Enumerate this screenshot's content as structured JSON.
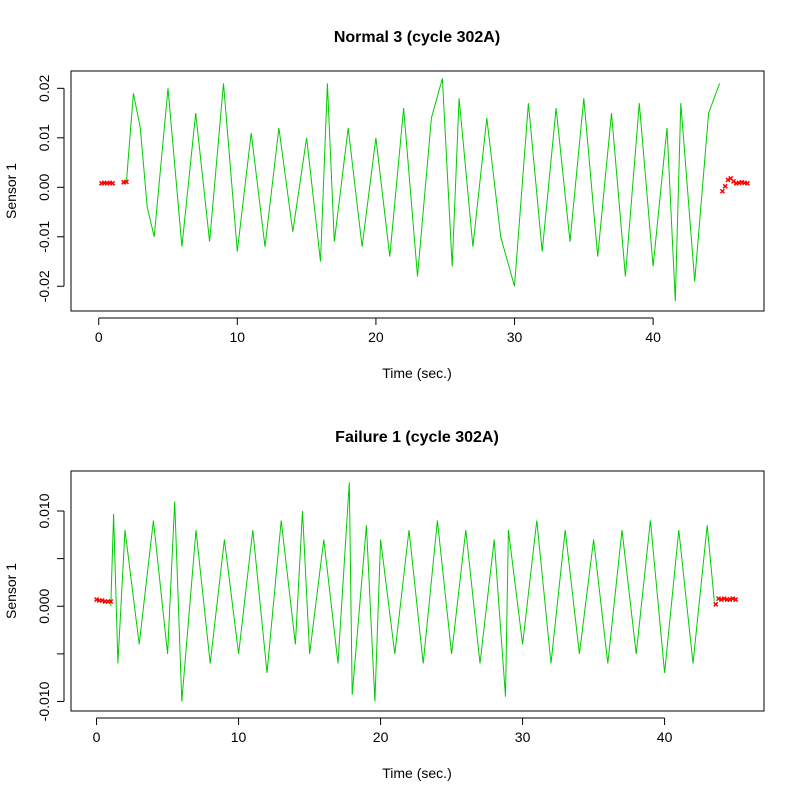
{
  "chart_data": [
    {
      "type": "line",
      "title": "Normal 3 (cycle 302A)",
      "xlabel": "Time (sec.)",
      "ylabel": "Sensor 1",
      "xlim": [
        -2,
        48
      ],
      "ylim": [
        -0.025,
        0.0235
      ],
      "x_ticks": [
        0,
        10,
        20,
        30,
        40
      ],
      "x_tick_labels": [
        "0",
        "10",
        "20",
        "30",
        "40"
      ],
      "y_ticks": [
        -0.02,
        -0.01,
        0.0,
        0.01,
        0.02
      ],
      "y_tick_labels": [
        "-0.02",
        "-0.01",
        "0.00",
        "0.01",
        "0.02"
      ],
      "grid": false,
      "series": [
        {
          "color": "#00cc00",
          "style": "line",
          "x": [
            2.0,
            2.5,
            3.0,
            3.5,
            4.0,
            5.0,
            6.0,
            7.0,
            8.0,
            9.0,
            10.0,
            11.0,
            12.0,
            13.0,
            14.0,
            15.0,
            16.0,
            16.5,
            17.0,
            18.0,
            19.0,
            20.0,
            21.0,
            22.0,
            23.0,
            24.0,
            24.8,
            25.5,
            26.0,
            27.0,
            28.0,
            29.0,
            30.0,
            31.0,
            32.0,
            33.0,
            34.0,
            35.0,
            36.0,
            37.0,
            38.0,
            39.0,
            40.0,
            41.0,
            41.6,
            42.0,
            43.0,
            44.0,
            44.8
          ],
          "y": [
            0.001,
            0.019,
            0.012,
            -0.004,
            -0.01,
            0.02,
            -0.012,
            0.015,
            -0.011,
            0.021,
            -0.013,
            0.011,
            -0.012,
            0.012,
            -0.009,
            0.01,
            -0.015,
            0.021,
            -0.011,
            0.012,
            -0.012,
            0.01,
            -0.014,
            0.016,
            -0.018,
            0.014,
            0.022,
            -0.016,
            0.018,
            -0.012,
            0.014,
            -0.01,
            -0.02,
            0.017,
            -0.013,
            0.016,
            -0.011,
            0.018,
            -0.014,
            0.015,
            -0.018,
            0.017,
            -0.016,
            0.012,
            -0.023,
            0.017,
            -0.019,
            0.015,
            0.021
          ]
        },
        {
          "color": "#ff0000",
          "style": "points",
          "x": [
            0.2,
            0.4,
            0.6,
            0.8,
            1.0,
            1.8,
            2.0,
            45.0,
            45.2,
            45.4,
            45.6,
            45.8,
            46.0,
            46.2,
            46.4,
            46.6,
            46.8
          ],
          "y": [
            0.0008,
            0.0009,
            0.0008,
            0.0009,
            0.0008,
            0.001,
            0.0011,
            -0.0008,
            0.0002,
            0.0015,
            0.0018,
            0.0012,
            0.0008,
            0.0009,
            0.001,
            0.0009,
            0.0008
          ]
        }
      ]
    },
    {
      "type": "line",
      "title": "Failure 1 (cycle 302A)",
      "xlabel": "Time (sec.)",
      "ylabel": "Sensor 1",
      "xlim": [
        -1.8,
        47.0
      ],
      "ylim": [
        -0.011,
        0.0142
      ],
      "x_ticks": [
        0,
        10,
        20,
        30,
        40
      ],
      "x_tick_labels": [
        "0",
        "10",
        "20",
        "30",
        "40"
      ],
      "y_ticks": [
        -0.01,
        -0.005,
        0.0,
        0.005,
        0.01
      ],
      "y_tick_labels": [
        "-0.010",
        "",
        "0.000",
        "",
        "0.010"
      ],
      "grid": false,
      "series": [
        {
          "color": "#00cc00",
          "style": "line",
          "x": [
            1.0,
            1.2,
            1.5,
            2.0,
            3.0,
            4.0,
            5.0,
            5.5,
            6.0,
            7.0,
            8.0,
            9.0,
            10.0,
            11.0,
            12.0,
            13.0,
            14.0,
            14.5,
            15.0,
            16.0,
            17.0,
            17.8,
            18.0,
            19.0,
            19.6,
            20.0,
            21.0,
            22.0,
            23.0,
            24.0,
            25.0,
            26.0,
            27.0,
            28.0,
            28.8,
            29.0,
            30.0,
            31.0,
            32.0,
            33.0,
            34.0,
            35.0,
            36.0,
            37.0,
            38.0,
            39.0,
            40.0,
            41.0,
            42.0,
            43.0,
            43.5
          ],
          "y": [
            0.0,
            0.0097,
            -0.006,
            0.008,
            -0.004,
            0.009,
            -0.005,
            0.011,
            -0.01,
            0.008,
            -0.006,
            0.007,
            -0.005,
            0.008,
            -0.007,
            0.009,
            -0.004,
            0.01,
            -0.005,
            0.007,
            -0.006,
            0.013,
            -0.0093,
            0.0085,
            -0.01,
            0.007,
            -0.005,
            0.008,
            -0.006,
            0.009,
            -0.005,
            0.008,
            -0.006,
            0.007,
            -0.0095,
            0.008,
            -0.004,
            0.009,
            -0.006,
            0.008,
            -0.005,
            0.007,
            -0.006,
            0.008,
            -0.005,
            0.009,
            -0.007,
            0.008,
            -0.006,
            0.0085,
            0.0005
          ]
        },
        {
          "color": "#ff0000",
          "style": "points",
          "x": [
            0.0,
            0.2,
            0.4,
            0.6,
            0.8,
            1.0,
            43.6,
            43.8,
            44.0,
            44.2,
            44.4,
            44.6,
            44.8,
            45.0
          ],
          "y": [
            0.0007,
            0.0006,
            0.0006,
            0.0005,
            0.0005,
            0.0005,
            0.0002,
            0.0008,
            0.0007,
            0.0008,
            0.0007,
            0.0007,
            0.0008,
            0.0007
          ]
        }
      ]
    }
  ]
}
